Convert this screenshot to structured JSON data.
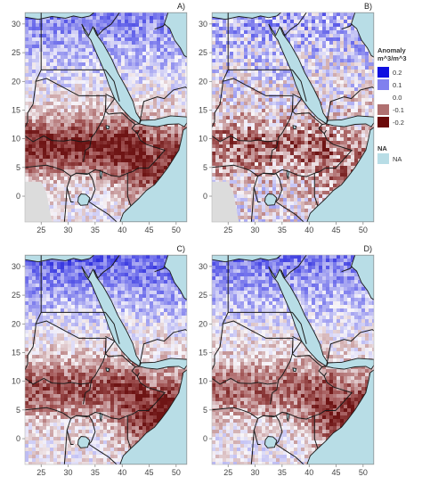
{
  "panels": [
    {
      "letter": "A)",
      "name": "panel-a",
      "pattern": "a"
    },
    {
      "letter": "B)",
      "name": "panel-b",
      "pattern": "b"
    },
    {
      "letter": "C)",
      "name": "panel-c",
      "pattern": "c"
    },
    {
      "letter": "D)",
      "name": "panel-d",
      "pattern": "d"
    }
  ],
  "axes": {
    "lon_ticks": [
      "25",
      "30",
      "35",
      "40",
      "45",
      "50"
    ],
    "lat_ticks": [
      "30",
      "25",
      "20",
      "15",
      "10",
      "5",
      "0"
    ]
  },
  "legend": {
    "title_line1": "Anomaly",
    "title_line2": "m^3/m^3",
    "entries": [
      {
        "label": "0.2",
        "color": "#1010e0"
      },
      {
        "label": "0.1",
        "color": "#8080ee"
      },
      {
        "label": "0.0",
        "color": "#ffffff"
      },
      {
        "label": "-0.1",
        "color": "#b07070"
      },
      {
        "label": "-0.2",
        "color": "#6b0a0a"
      }
    ],
    "na_title": "NA",
    "na_label": "NA",
    "na_color": "#b8dde6"
  },
  "colors": {
    "sea": "#b8dde6",
    "land": "#f4f2f6",
    "border": "#1a1a1a",
    "no_data": "#dcdcdc"
  }
}
